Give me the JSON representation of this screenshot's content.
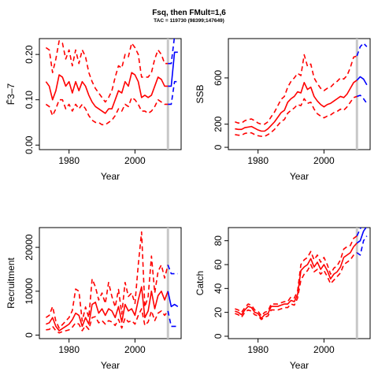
{
  "title": "Fsq, then FMult=1,6",
  "subtitle": "TAC = 119730 (98399;147649)",
  "colors": {
    "historic": "#ff0000",
    "forecast": "#0000ff",
    "marker": "#c8c8c8",
    "axis": "#000000"
  },
  "chart_data": [
    {
      "type": "line",
      "xlabel": "Year",
      "ylabel": "F̄3–7",
      "xlim": [
        1971,
        2014
      ],
      "ylim": [
        -0.01,
        0.235
      ],
      "xticks": [
        1980,
        2000
      ],
      "yticks": [
        0.0,
        0.1,
        0.2
      ],
      "ytick_labels": [
        "0.00",
        "0.10",
        "0.20"
      ],
      "marker_year": 2010,
      "historic": {
        "x": [
          1973,
          1974,
          1975,
          1976,
          1977,
          1978,
          1979,
          1980,
          1981,
          1982,
          1983,
          1984,
          1985,
          1986,
          1987,
          1988,
          1989,
          1990,
          1991,
          1992,
          1993,
          1994,
          1995,
          1996,
          1997,
          1998,
          1999,
          2000,
          2001,
          2002,
          2003,
          2004,
          2005,
          2006,
          2007,
          2008,
          2009,
          2010
        ],
        "mid": [
          0.14,
          0.13,
          0.1,
          0.12,
          0.155,
          0.15,
          0.13,
          0.14,
          0.115,
          0.14,
          0.12,
          0.14,
          0.13,
          0.11,
          0.095,
          0.085,
          0.08,
          0.075,
          0.07,
          0.08,
          0.08,
          0.1,
          0.12,
          0.115,
          0.14,
          0.13,
          0.16,
          0.155,
          0.14,
          0.105,
          0.11,
          0.105,
          0.11,
          0.13,
          0.15,
          0.145,
          0.13,
          0.13
        ],
        "low": [
          0.09,
          0.085,
          0.065,
          0.08,
          0.1,
          0.1,
          0.08,
          0.09,
          0.075,
          0.09,
          0.08,
          0.09,
          0.08,
          0.065,
          0.055,
          0.05,
          0.05,
          0.045,
          0.045,
          0.05,
          0.055,
          0.065,
          0.08,
          0.075,
          0.09,
          0.085,
          0.105,
          0.1,
          0.09,
          0.075,
          0.075,
          0.07,
          0.075,
          0.085,
          0.1,
          0.095,
          0.09,
          0.09
        ],
        "high": [
          0.215,
          0.21,
          0.16,
          0.19,
          0.23,
          0.225,
          0.19,
          0.21,
          0.175,
          0.21,
          0.18,
          0.21,
          0.195,
          0.16,
          0.14,
          0.125,
          0.115,
          0.105,
          0.095,
          0.105,
          0.12,
          0.15,
          0.175,
          0.17,
          0.2,
          0.195,
          0.225,
          0.215,
          0.2,
          0.15,
          0.15,
          0.15,
          0.16,
          0.19,
          0.21,
          0.2,
          0.18,
          0.18
        ]
      },
      "forecast": {
        "x": [
          2010,
          2011,
          2012,
          2013
        ],
        "mid": [
          0.13,
          0.13,
          0.205,
          0.205
        ],
        "low": [
          0.09,
          0.09,
          0.14,
          0.14
        ],
        "high": [
          0.18,
          0.18,
          0.24,
          0.24
        ]
      }
    },
    {
      "type": "line",
      "xlabel": "Year",
      "ylabel": "SSB",
      "xlim": [
        1971,
        2014
      ],
      "ylim": [
        -20,
        940
      ],
      "xticks": [
        1980,
        2000
      ],
      "yticks": [
        0,
        200,
        600
      ],
      "ytick_labels": [
        "0",
        "200",
        "600"
      ],
      "marker_year": 2010,
      "historic": {
        "x": [
          1973,
          1974,
          1975,
          1976,
          1977,
          1978,
          1979,
          1980,
          1981,
          1982,
          1983,
          1984,
          1985,
          1986,
          1987,
          1988,
          1989,
          1990,
          1991,
          1992,
          1993,
          1994,
          1995,
          1996,
          1997,
          1998,
          1999,
          2000,
          2001,
          2002,
          2003,
          2004,
          2005,
          2006,
          2007,
          2008,
          2009,
          2010
        ],
        "mid": [
          160,
          155,
          155,
          170,
          175,
          180,
          165,
          150,
          140,
          140,
          160,
          190,
          220,
          260,
          300,
          320,
          390,
          420,
          440,
          480,
          470,
          560,
          500,
          520,
          440,
          400,
          370,
          350,
          370,
          380,
          400,
          420,
          440,
          430,
          460,
          510,
          560,
          580
        ],
        "low": [
          110,
          105,
          105,
          120,
          125,
          125,
          110,
          100,
          95,
          95,
          110,
          130,
          155,
          190,
          225,
          240,
          295,
          320,
          340,
          370,
          360,
          420,
          380,
          390,
          330,
          290,
          270,
          255,
          270,
          280,
          300,
          310,
          330,
          320,
          350,
          390,
          430,
          440
        ],
        "high": [
          220,
          210,
          210,
          230,
          240,
          245,
          230,
          210,
          200,
          200,
          220,
          265,
          305,
          360,
          415,
          440,
          520,
          570,
          600,
          640,
          620,
          800,
          700,
          720,
          600,
          550,
          510,
          490,
          510,
          520,
          550,
          570,
          600,
          590,
          620,
          690,
          780,
          790
        ]
      },
      "forecast": {
        "x": [
          2010,
          2011,
          2012,
          2013
        ],
        "mid": [
          580,
          610,
          590,
          540
        ],
        "low": [
          440,
          450,
          420,
          380
        ],
        "high": [
          790,
          870,
          900,
          870
        ]
      }
    },
    {
      "type": "line",
      "xlabel": "Year",
      "ylabel": "Recruitment",
      "xlim": [
        1971,
        2014
      ],
      "ylim": [
        -800,
        24500
      ],
      "xticks": [
        1980,
        2000
      ],
      "yticks": [
        0,
        10000,
        20000
      ],
      "ytick_labels": [
        "0",
        "10000",
        "20000"
      ],
      "marker_year": 2010,
      "historic": {
        "x": [
          1973,
          1974,
          1975,
          1976,
          1977,
          1978,
          1979,
          1980,
          1981,
          1982,
          1983,
          1984,
          1985,
          1986,
          1987,
          1988,
          1989,
          1990,
          1991,
          1992,
          1993,
          1994,
          1995,
          1996,
          1997,
          1998,
          1999,
          2000,
          2001,
          2002,
          2003,
          2004,
          2005,
          2006,
          2007,
          2008,
          2009,
          2010
        ],
        "mid": [
          2500,
          2800,
          4000,
          2000,
          1000,
          1500,
          2000,
          2500,
          3500,
          5000,
          4500,
          2000,
          4000,
          2500,
          7000,
          7500,
          5000,
          6000,
          4500,
          6000,
          5500,
          4000,
          6500,
          3000,
          7000,
          5500,
          6000,
          4500,
          8000,
          11000,
          4000,
          5500,
          10000,
          6000,
          9000,
          10000,
          8000,
          10000
        ],
        "low": [
          1200,
          1300,
          2000,
          1000,
          500,
          800,
          1000,
          1200,
          1800,
          2800,
          2500,
          1000,
          2200,
          1300,
          4000,
          4200,
          2800,
          3300,
          2500,
          3300,
          3000,
          2200,
          3600,
          1600,
          3900,
          3000,
          3300,
          2500,
          4500,
          6000,
          2200,
          3000,
          5500,
          3300,
          5000,
          5500,
          4500,
          5500
        ],
        "high": [
          4000,
          4500,
          6500,
          3200,
          1600,
          2400,
          3200,
          4000,
          5600,
          10500,
          10000,
          3200,
          6400,
          4000,
          12800,
          11000,
          8000,
          9600,
          7200,
          12000,
          8800,
          6400,
          10400,
          4800,
          12000,
          8800,
          9600,
          7200,
          16000,
          23500,
          6400,
          8800,
          18000,
          9600,
          14500,
          16000,
          13000,
          16000
        ]
      },
      "forecast": {
        "x": [
          2010,
          2011,
          2012,
          2013
        ],
        "mid": [
          10000,
          6500,
          7000,
          6500
        ],
        "low": [
          5500,
          2000,
          2000,
          2000
        ],
        "high": [
          16000,
          14000,
          14000,
          14000
        ]
      }
    },
    {
      "type": "line",
      "xlabel": "Year",
      "ylabel": "Catch",
      "xlim": [
        1971,
        2014
      ],
      "ylim": [
        -2,
        91
      ],
      "xticks": [
        1980,
        2000
      ],
      "yticks": [
        0,
        20,
        40,
        60,
        80
      ],
      "ytick_labels": [
        "0",
        "20",
        "40",
        "60",
        "80"
      ],
      "marker_year": 2010,
      "historic": {
        "x": [
          1973,
          1974,
          1975,
          1976,
          1977,
          1978,
          1979,
          1980,
          1981,
          1982,
          1983,
          1984,
          1985,
          1986,
          1987,
          1988,
          1989,
          1990,
          1991,
          1992,
          1993,
          1994,
          1995,
          1996,
          1997,
          1998,
          1999,
          2000,
          2001,
          2002,
          2003,
          2004,
          2005,
          2006,
          2007,
          2008,
          2009,
          2010
        ],
        "mid": [
          21,
          20,
          18,
          22,
          25,
          24,
          20,
          19,
          15,
          18,
          19,
          25,
          25,
          25,
          26,
          27,
          27,
          30,
          29,
          35,
          55,
          58,
          60,
          65,
          58,
          62,
          56,
          60,
          55,
          48,
          52,
          54,
          58,
          66,
          68,
          70,
          75,
          78
        ],
        "low": [
          19,
          18,
          16,
          20,
          22,
          21,
          18,
          17,
          14,
          16,
          17,
          22,
          22,
          22,
          23,
          24,
          24,
          27,
          26,
          32,
          47,
          52,
          55,
          60,
          54,
          56,
          52,
          55,
          50,
          44,
          47,
          50,
          53,
          60,
          62,
          64,
          68,
          70
        ],
        "high": [
          23,
          22,
          20,
          24,
          27,
          26,
          22,
          21,
          17,
          20,
          21,
          27,
          27,
          27,
          28,
          29,
          29,
          33,
          32,
          38,
          60,
          64,
          66,
          71,
          64,
          68,
          62,
          66,
          60,
          52,
          57,
          59,
          64,
          73,
          75,
          76,
          82,
          84
        ]
      },
      "forecast": {
        "x": [
          2010,
          2011,
          2012,
          2013
        ],
        "mid": [
          78,
          80,
          88,
          92
        ],
        "low": [
          70,
          68,
          80,
          84
        ],
        "high": [
          84,
          90,
          95,
          100
        ]
      }
    }
  ]
}
